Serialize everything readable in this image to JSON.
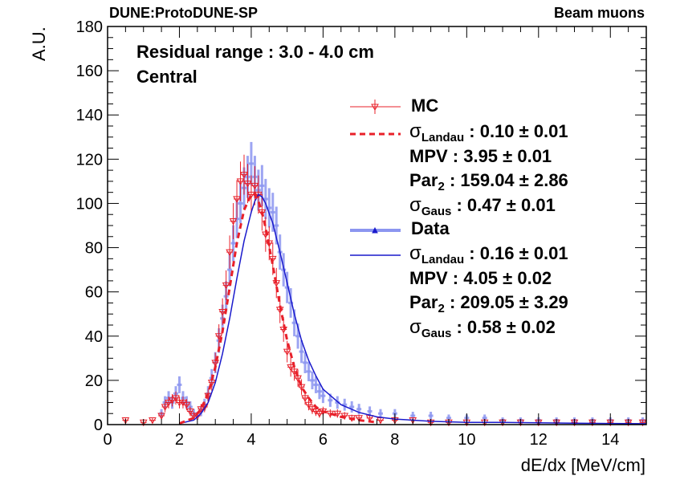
{
  "header": {
    "left": "DUNE:ProtoDUNE-SP",
    "right": "Beam muons"
  },
  "annotation": {
    "line1": "Residual range : 3.0 - 4.0 cm",
    "line2": "Central"
  },
  "legend": {
    "mc": {
      "label": "MC",
      "sigma_symbol": "σ",
      "sigma_landau_sub": "Landau",
      "sigma_landau_val": " : 0.10 ± 0.01",
      "mpv": "MPV : 3.95 ± 0.01",
      "par_prefix": "Par",
      "par_sub": "2",
      "par_val": " : 159.04 ± 2.86",
      "sigma_gaus_sub": "Gaus",
      "sigma_gaus_val": " : 0.47 ± 0.01"
    },
    "data": {
      "label": "Data",
      "sigma_symbol": "σ",
      "sigma_landau_sub": "Landau",
      "sigma_landau_val": " : 0.16 ± 0.01",
      "mpv": "MPV : 4.05 ± 0.02",
      "par_prefix": "Par",
      "par_sub": "2",
      "par_val": " : 209.05 ± 3.29",
      "sigma_gaus_sub": "Gaus",
      "sigma_gaus_val": " : 0.58 ± 0.02"
    }
  },
  "colors": {
    "mc": "#e8202a",
    "data_points": "#8c96f0",
    "data_fit": "#1a1acc",
    "axis": "#000000"
  },
  "chart_data": {
    "type": "scatter",
    "title": "",
    "xlabel": "dE/dx [MeV/cm]",
    "ylabel": "A.U.",
    "xlim": [
      0,
      15
    ],
    "ylim": [
      0,
      180
    ],
    "xticks": [
      0,
      2,
      4,
      6,
      8,
      10,
      12,
      14
    ],
    "yticks": [
      0,
      20,
      40,
      60,
      80,
      100,
      120,
      140,
      160,
      180
    ],
    "series": [
      {
        "name": "MC",
        "style": "open-triangle-down with error bars",
        "x": [
          0.5,
          1.0,
          1.25,
          1.5,
          1.6,
          1.7,
          1.8,
          1.9,
          2.0,
          2.1,
          2.2,
          2.3,
          2.4,
          2.5,
          2.6,
          2.7,
          2.8,
          2.9,
          3.0,
          3.1,
          3.2,
          3.3,
          3.4,
          3.5,
          3.6,
          3.7,
          3.8,
          3.9,
          4.0,
          4.1,
          4.2,
          4.3,
          4.4,
          4.5,
          4.6,
          4.7,
          4.8,
          4.9,
          5.0,
          5.1,
          5.2,
          5.3,
          5.4,
          5.5,
          5.6,
          5.7,
          5.8,
          5.9,
          6.0,
          6.2,
          6.4,
          6.6,
          6.8,
          7.0,
          7.3,
          7.6,
          8.0,
          8.5,
          9.0,
          9.5,
          10.0,
          10.5,
          11.0,
          11.5,
          12.0,
          12.5,
          13.0,
          13.5,
          14.0,
          14.5,
          14.9
        ],
        "y": [
          2,
          1,
          2,
          4,
          8,
          10,
          11,
          12,
          10,
          10,
          9,
          6,
          4,
          4,
          7,
          8,
          13,
          19,
          28,
          40,
          51,
          63,
          78,
          92,
          102,
          110,
          113,
          109,
          104,
          108,
          104,
          96,
          86,
          82,
          75,
          64,
          52,
          43,
          33,
          26,
          24,
          21,
          17,
          12,
          9,
          7,
          6,
          5,
          6,
          5,
          5,
          4,
          3,
          3,
          3,
          2,
          2,
          2,
          1,
          1,
          1,
          1,
          1,
          1,
          1,
          1,
          1,
          1,
          1,
          1,
          1
        ]
      },
      {
        "name": "MC fit (Landau ⊗ Gaus)",
        "style": "dashed line",
        "x": [
          2.0,
          2.4,
          2.6,
          2.8,
          3.0,
          3.2,
          3.4,
          3.6,
          3.8,
          4.0,
          4.1,
          4.2,
          4.3,
          4.4,
          4.6,
          4.8,
          5.0,
          5.2,
          5.4,
          5.6,
          5.8,
          6.0,
          6.5,
          7.0,
          7.5
        ],
        "y": [
          0.5,
          3,
          7,
          14,
          26,
          42,
          62,
          82,
          97,
          104,
          104,
          101,
          96,
          89,
          72,
          54,
          38,
          26,
          17,
          12,
          8,
          6,
          3.5,
          2,
          1
        ]
      },
      {
        "name": "Data",
        "style": "small blue markers with error bars",
        "x": [
          1.5,
          1.6,
          1.7,
          1.8,
          1.9,
          2.0,
          2.1,
          2.2,
          2.3,
          2.4,
          2.5,
          2.6,
          2.7,
          2.8,
          2.9,
          3.0,
          3.1,
          3.2,
          3.3,
          3.4,
          3.5,
          3.6,
          3.7,
          3.8,
          3.9,
          4.0,
          4.1,
          4.2,
          4.3,
          4.4,
          4.5,
          4.6,
          4.7,
          4.8,
          4.9,
          5.0,
          5.1,
          5.2,
          5.3,
          5.4,
          5.5,
          5.6,
          5.7,
          5.8,
          5.9,
          6.0,
          6.2,
          6.4,
          6.6,
          6.8,
          7.0,
          7.3,
          7.6,
          8.0,
          8.5,
          9.0,
          9.5,
          10.0,
          10.5,
          11.0,
          11.5,
          12.0,
          12.5,
          13.0,
          13.5,
          14.0,
          14.5,
          14.9
        ],
        "y": [
          5,
          10,
          12,
          10,
          14,
          18,
          12,
          10,
          8,
          5,
          4,
          6,
          9,
          14,
          21,
          28,
          38,
          48,
          58,
          70,
          82,
          93,
          100,
          107,
          112,
          118,
          112,
          106,
          108,
          102,
          98,
          96,
          90,
          78,
          70,
          62,
          55,
          46,
          40,
          33,
          28,
          24,
          20,
          18,
          15,
          13,
          11,
          10,
          9,
          8,
          7,
          6,
          5,
          5,
          4,
          4,
          3,
          3,
          3,
          2,
          2,
          2,
          2,
          2,
          2,
          2,
          2,
          2
        ]
      },
      {
        "name": "Data fit (Landau ⊗ Gaus)",
        "style": "solid line",
        "x": [
          2.0,
          2.4,
          2.6,
          2.8,
          3.0,
          3.2,
          3.4,
          3.6,
          3.8,
          4.0,
          4.1,
          4.2,
          4.3,
          4.4,
          4.6,
          4.8,
          5.0,
          5.2,
          5.4,
          5.6,
          5.8,
          6.0,
          6.5,
          7.0,
          7.5,
          8.0,
          9.0,
          10.0,
          11.0,
          12.0,
          13.0,
          14.0,
          15.0
        ],
        "y": [
          0.5,
          2,
          5,
          10,
          19,
          32,
          48,
          66,
          83,
          96,
          101,
          104,
          103,
          100,
          91,
          78,
          64,
          50,
          38,
          29,
          22,
          16,
          9,
          5.5,
          3.5,
          2.5,
          1.5,
          1,
          1,
          0.8,
          0.6,
          0.5,
          0.4
        ]
      }
    ]
  }
}
